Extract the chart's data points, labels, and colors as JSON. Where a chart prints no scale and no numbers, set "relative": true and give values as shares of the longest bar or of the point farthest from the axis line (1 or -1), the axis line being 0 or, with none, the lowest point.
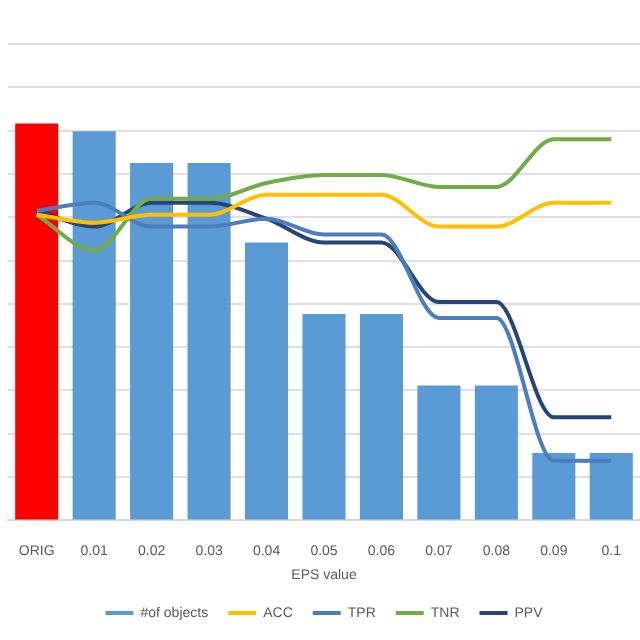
{
  "chart_data": {
    "type": "bar",
    "relative": true,
    "xlabel": "EPS value",
    "categories": [
      "ORIG",
      "0.01",
      "0.02",
      "0.03",
      "0.04",
      "0.05",
      "0.06",
      "0.07",
      "0.08",
      "0.09",
      "0.1"
    ],
    "grid": "y",
    "legend": "bottom",
    "tick_labels": "x",
    "series": [
      {
        "name": "#of objects",
        "color": "#5b9bd5",
        "colors": [
          "#ff0000",
          "#5b9bd5",
          "#5b9bd5",
          "#5b9bd5",
          "#5b9bd5",
          "#5b9bd5",
          "#5b9bd5",
          "#5b9bd5",
          "#5b9bd5",
          "#5b9bd5",
          "#5b9bd5"
        ],
        "values": [
          1,
          0.98,
          0.9,
          0.9,
          0.7,
          0.52,
          0.52,
          0.34,
          0.34,
          0.17,
          0.17
        ]
      },
      {
        "name": "ACC",
        "type": "line",
        "color": "#ffc000",
        "values": [
          0.77,
          0.75,
          0.77,
          0.77,
          0.82,
          0.82,
          0.82,
          0.74,
          0.74,
          0.8,
          0.8
        ]
      },
      {
        "name": "TPR",
        "type": "line",
        "color": "#4a7ebf",
        "values": [
          0.78,
          0.8,
          0.74,
          0.74,
          0.76,
          0.72,
          0.72,
          0.51,
          0.51,
          0.15,
          0.15
        ]
      },
      {
        "name": "TNR",
        "type": "line",
        "color": "#70ad47",
        "values": [
          0.77,
          0.68,
          0.81,
          0.81,
          0.85,
          0.87,
          0.87,
          0.84,
          0.84,
          0.96,
          0.96
        ]
      },
      {
        "name": "PPV",
        "type": "line",
        "color": "#264478",
        "values": [
          0.78,
          0.74,
          0.8,
          0.8,
          0.76,
          0.7,
          0.7,
          0.55,
          0.55,
          0.26,
          0.26
        ]
      }
    ]
  }
}
